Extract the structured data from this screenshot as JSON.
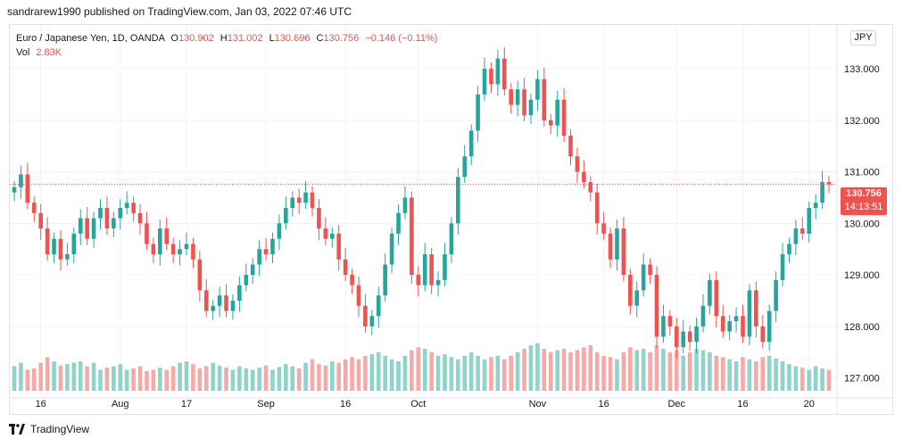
{
  "header": {
    "published_text": "sandrarew1990 published on TradingView.com, Jan 03, 2022 07:46 UTC"
  },
  "legend": {
    "symbol": "Euro / Japanese Yen, 1D, OANDA",
    "o_label": "O",
    "o_value": "130.902",
    "h_label": "H",
    "h_value": "131.002",
    "l_label": "L",
    "l_value": "130.696",
    "c_label": "C",
    "c_value": "130.756",
    "change": "−0.146 (−0.11%)",
    "vol_label": "Vol",
    "vol_value": "2.83K"
  },
  "currency_badge": "JPY",
  "last_price": {
    "price": "130.756",
    "countdown": "14:13:51"
  },
  "footer": {
    "brand": "TradingView"
  },
  "colors": {
    "up": "#26a69a",
    "down": "#ef5350",
    "up_volume": "#8fd3c9",
    "down_volume": "#f7a9a7",
    "grid": "#f0f3fa"
  },
  "chart_data": {
    "type": "candlestick",
    "title": "Euro / Japanese Yen, 1D, OANDA",
    "xlabel": "",
    "ylabel": "",
    "ylim": [
      126.75,
      133.85
    ],
    "y_ticks": [
      "127.000",
      "128.000",
      "129.000",
      "130.000",
      "131.000",
      "132.000",
      "133.000"
    ],
    "x_tick_labels": [
      "16",
      "Aug",
      "17",
      "Sep",
      "16",
      "Oct",
      "Nov",
      "16",
      "Dec",
      "16",
      "20"
    ],
    "x_tick_positions": [
      4,
      16,
      26,
      38,
      50,
      61,
      79,
      89,
      100,
      110,
      120
    ],
    "grid": true,
    "last_close_line": 130.756,
    "closes": [
      130.7,
      130.95,
      130.4,
      130.2,
      129.9,
      129.4,
      129.7,
      129.3,
      129.4,
      129.8,
      130.1,
      129.7,
      130.1,
      130.3,
      129.9,
      130.1,
      130.3,
      130.4,
      130.2,
      130.0,
      129.6,
      129.4,
      129.9,
      129.6,
      129.4,
      129.5,
      129.6,
      129.3,
      128.7,
      128.3,
      128.4,
      128.6,
      128.3,
      128.5,
      128.8,
      129.0,
      129.2,
      129.5,
      129.4,
      129.7,
      130.0,
      130.3,
      130.5,
      130.4,
      130.6,
      130.3,
      129.9,
      129.7,
      129.8,
      129.3,
      129.0,
      128.8,
      128.4,
      128.0,
      128.2,
      128.6,
      129.2,
      129.8,
      130.2,
      130.5,
      129.0,
      128.8,
      129.4,
      128.8,
      128.9,
      129.4,
      130.0,
      130.9,
      131.3,
      131.8,
      132.5,
      133.0,
      132.7,
      133.2,
      132.6,
      132.3,
      132.6,
      132.1,
      132.4,
      132.8,
      132.0,
      131.9,
      132.4,
      131.7,
      131.3,
      131.0,
      130.8,
      130.6,
      130.0,
      129.8,
      129.3,
      129.9,
      129.0,
      128.4,
      128.7,
      129.2,
      129.0,
      127.8,
      128.2,
      128.0,
      127.6,
      127.9,
      127.7,
      128.0,
      128.4,
      128.9,
      128.2,
      127.9,
      128.1,
      128.2,
      127.8,
      128.7,
      128.0,
      127.7,
      128.3,
      128.9,
      129.4,
      129.6,
      129.9,
      129.8,
      130.3,
      130.4,
      130.8,
      130.756
    ],
    "volumes": [
      0.35,
      0.4,
      0.3,
      0.32,
      0.4,
      0.48,
      0.42,
      0.36,
      0.38,
      0.4,
      0.42,
      0.35,
      0.4,
      0.3,
      0.33,
      0.35,
      0.38,
      0.3,
      0.32,
      0.35,
      0.28,
      0.3,
      0.33,
      0.3,
      0.35,
      0.4,
      0.42,
      0.38,
      0.32,
      0.35,
      0.4,
      0.36,
      0.33,
      0.3,
      0.35,
      0.32,
      0.3,
      0.33,
      0.36,
      0.3,
      0.34,
      0.38,
      0.35,
      0.32,
      0.4,
      0.45,
      0.38,
      0.36,
      0.42,
      0.4,
      0.45,
      0.48,
      0.45,
      0.5,
      0.52,
      0.55,
      0.5,
      0.45,
      0.42,
      0.5,
      0.58,
      0.62,
      0.6,
      0.55,
      0.5,
      0.52,
      0.48,
      0.45,
      0.5,
      0.55,
      0.5,
      0.45,
      0.48,
      0.5,
      0.45,
      0.5,
      0.55,
      0.6,
      0.65,
      0.68,
      0.6,
      0.55,
      0.58,
      0.6,
      0.55,
      0.58,
      0.62,
      0.65,
      0.55,
      0.5,
      0.48,
      0.45,
      0.55,
      0.62,
      0.58,
      0.6,
      0.55,
      0.65,
      0.6,
      0.55,
      0.58,
      0.5,
      0.55,
      0.6,
      0.58,
      0.55,
      0.5,
      0.48,
      0.45,
      0.42,
      0.48,
      0.45,
      0.42,
      0.48,
      0.5,
      0.46,
      0.42,
      0.38,
      0.35,
      0.33,
      0.3,
      0.35,
      0.32,
      0.3
    ]
  }
}
